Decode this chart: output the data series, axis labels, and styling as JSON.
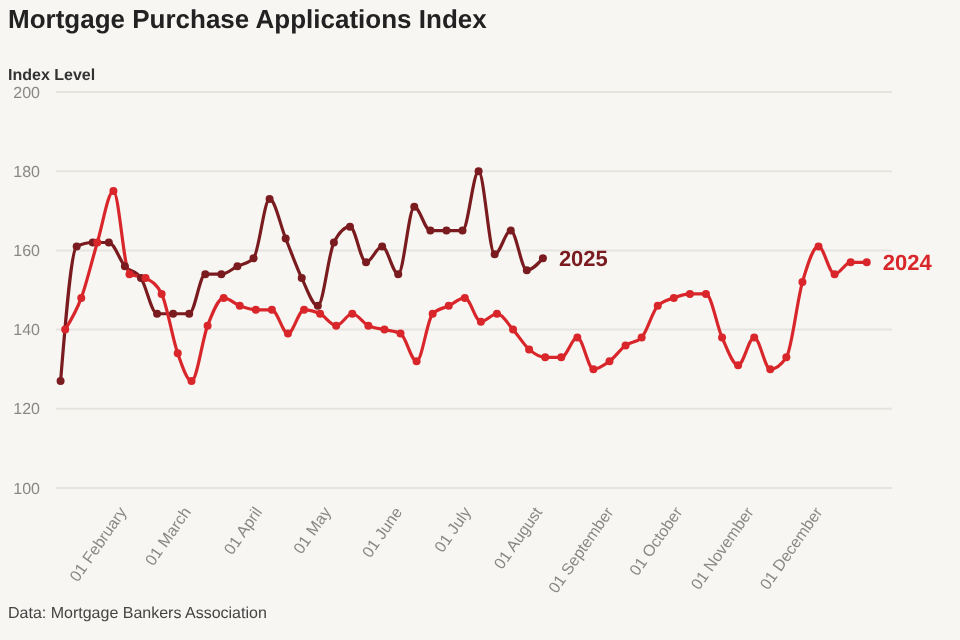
{
  "chart_data": {
    "type": "line",
    "title": "Mortgage Purchase Applications Index",
    "ylabel": "Index Level",
    "annotations": [
      "Data: Mortgage Bankers Association"
    ],
    "xlim": [
      "--01-01",
      "--12-31"
    ],
    "xticks": [
      {
        "value": "--02-01",
        "label": "01 February"
      },
      {
        "value": "--03-01",
        "label": "01 March"
      },
      {
        "value": "--04-01",
        "label": "01 April"
      },
      {
        "value": "--05-01",
        "label": "01 May"
      },
      {
        "value": "--06-01",
        "label": "01 June"
      },
      {
        "value": "--07-01",
        "label": "01 July"
      },
      {
        "value": "--08-01",
        "label": "01 August"
      },
      {
        "value": "--09-01",
        "label": "01 September"
      },
      {
        "value": "--10-01",
        "label": "01 October"
      },
      {
        "value": "--11-01",
        "label": "01 November"
      },
      {
        "value": "--12-01",
        "label": "01 December"
      }
    ],
    "ylim": [
      100,
      200
    ],
    "yticks": [
      100,
      120,
      140,
      160,
      180,
      200
    ],
    "grid": "y",
    "marker": "circle",
    "line_style": "solid",
    "series": [
      {
        "name": "2025",
        "color": "#7a1c1f",
        "x": [
          "--01-03",
          "--01-10",
          "--01-17",
          "--01-24",
          "--01-31",
          "--02-07",
          "--02-14",
          "--02-21",
          "--02-28",
          "--03-07",
          "--03-14",
          "--03-21",
          "--03-28",
          "--04-04",
          "--04-11",
          "--04-18",
          "--04-25",
          "--05-02",
          "--05-09",
          "--05-16",
          "--05-23",
          "--05-30",
          "--06-06",
          "--06-13",
          "--06-20",
          "--06-27",
          "--07-04",
          "--07-11",
          "--07-18",
          "--07-25",
          "--08-01"
        ],
        "values": [
          127,
          161,
          162,
          162,
          156,
          153,
          144,
          144,
          144,
          154,
          154,
          156,
          158,
          173,
          163,
          153,
          146,
          162,
          166,
          157,
          161,
          154,
          171,
          165,
          165,
          165,
          180,
          159,
          165,
          155,
          158
        ]
      },
      {
        "name": "2024",
        "color": "#d8262b",
        "x": [
          "--01-05",
          "--01-12",
          "--01-19",
          "--01-26",
          "--02-02",
          "--02-09",
          "--02-16",
          "--02-23",
          "--03-01",
          "--03-08",
          "--03-15",
          "--03-22",
          "--03-29",
          "--04-05",
          "--04-12",
          "--04-19",
          "--04-26",
          "--05-03",
          "--05-10",
          "--05-17",
          "--05-24",
          "--05-31",
          "--06-07",
          "--06-14",
          "--06-21",
          "--06-28",
          "--07-05",
          "--07-12",
          "--07-19",
          "--07-26",
          "--08-02",
          "--08-09",
          "--08-16",
          "--08-23",
          "--08-30",
          "--09-06",
          "--09-13",
          "--09-20",
          "--09-27",
          "--10-04",
          "--10-11",
          "--10-18",
          "--10-25",
          "--11-01",
          "--11-08",
          "--11-15",
          "--11-22",
          "--11-29",
          "--12-06",
          "--12-13",
          "--12-20"
        ],
        "values": [
          140,
          148,
          162,
          175,
          154,
          153,
          149,
          134,
          127,
          141,
          148,
          146,
          145,
          145,
          139,
          145,
          144,
          141,
          144,
          141,
          140,
          139,
          132,
          144,
          146,
          148,
          142,
          144,
          140,
          135,
          133,
          133,
          138,
          130,
          132,
          136,
          138,
          146,
          148,
          149,
          149,
          138,
          131,
          138,
          130,
          133,
          152,
          161,
          154,
          157,
          157
        ]
      }
    ]
  }
}
